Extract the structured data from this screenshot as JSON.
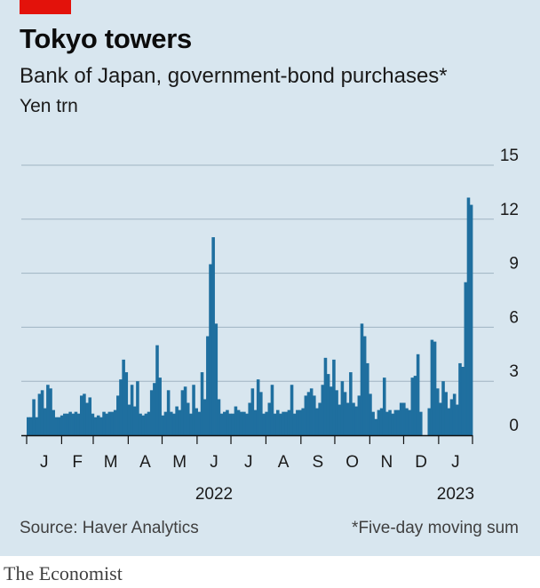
{
  "header": {
    "title": "Tokyo towers",
    "subtitle": "Bank of Japan, government-bond purchases*",
    "unit": "Yen trn"
  },
  "footer": {
    "source": "Source: Haver Analytics",
    "footnote": "*Five-day moving sum",
    "brand": "The Economist"
  },
  "colors": {
    "bar": "#1f6f9f",
    "grid": "#9fb4c2",
    "panel": "#d8e6ef",
    "accent": "#e3120b"
  },
  "chart_data": {
    "type": "bar",
    "title": "Tokyo towers",
    "subtitle": "Bank of Japan, government-bond purchases*",
    "ylabel": "Yen trn",
    "ylim": [
      0,
      15
    ],
    "yticks": [
      0,
      3,
      6,
      9,
      12,
      15
    ],
    "grid": true,
    "x_range": [
      "2022-01-01",
      "2023-01-31"
    ],
    "month_labels": [
      "J",
      "F",
      "M",
      "A",
      "M",
      "J",
      "J",
      "A",
      "S",
      "O",
      "N",
      "D",
      "J"
    ],
    "year_labels": [
      {
        "label": "2022",
        "month": "2022-06"
      },
      {
        "label": "2023",
        "month": "2023-01"
      }
    ],
    "series": [
      {
        "values": [
          1.0,
          1.0,
          2.0,
          1.0,
          2.3,
          2.5,
          1.5,
          2.8,
          2.6,
          1.4,
          1.0,
          1.0,
          1.1,
          1.2,
          1.2,
          1.3,
          1.2,
          1.3,
          1.2,
          2.2,
          2.3,
          1.8,
          2.1,
          1.2,
          1.0,
          1.1,
          1.0,
          1.3,
          1.2,
          1.3,
          1.3,
          1.4,
          2.2,
          3.1,
          4.2,
          3.5,
          1.7,
          2.8,
          1.6,
          3.0,
          1.2,
          1.1,
          1.2,
          1.3,
          2.5,
          2.9,
          5.0,
          3.2,
          1.1,
          1.3,
          2.5,
          1.3,
          1.2,
          1.6,
          1.4,
          2.5,
          2.7,
          1.8,
          1.2,
          2.8,
          1.5,
          1.3,
          3.5,
          2.0,
          5.5,
          9.5,
          11.0,
          6.2,
          2.0,
          1.2,
          1.3,
          1.4,
          1.2,
          1.2,
          1.6,
          1.4,
          1.3,
          1.3,
          1.2,
          1.8,
          2.6,
          1.4,
          3.1,
          2.4,
          1.2,
          1.3,
          1.8,
          2.8,
          1.2,
          1.4,
          1.2,
          1.3,
          1.3,
          1.4,
          2.8,
          1.2,
          1.4,
          1.4,
          1.5,
          2.2,
          2.4,
          2.6,
          2.2,
          1.5,
          1.8,
          2.8,
          4.3,
          3.4,
          2.7,
          4.2,
          2.5,
          1.7,
          3.0,
          2.4,
          1.8,
          3.5,
          1.8,
          1.6,
          2.2,
          6.2,
          5.5,
          4.0,
          2.3,
          1.3,
          0.9,
          1.4,
          1.5,
          3.2,
          1.3,
          1.4,
          1.2,
          1.4,
          1.4,
          1.8,
          1.8,
          1.5,
          1.4,
          3.2,
          3.3,
          4.5,
          1.3,
          0.0,
          0.0,
          1.5,
          5.3,
          5.2,
          2.6,
          1.8,
          3.0,
          2.4,
          1.5,
          2.0,
          2.3,
          1.7,
          4.0,
          3.8,
          8.5,
          13.2,
          12.8
        ]
      }
    ]
  }
}
